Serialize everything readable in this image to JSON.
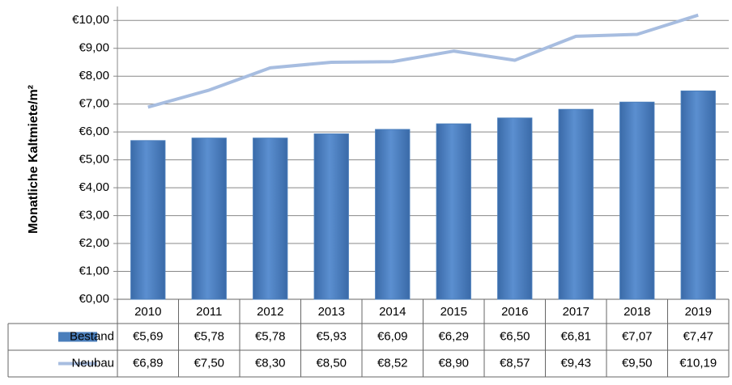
{
  "chart_data": {
    "type": "bar",
    "y_label": "Monatliche Kaltmiete/m²",
    "categories": [
      "2010",
      "2011",
      "2012",
      "2013",
      "2014",
      "2015",
      "2016",
      "2017",
      "2018",
      "2019"
    ],
    "series": [
      {
        "name": "Bestand",
        "type": "bar",
        "color": "#4a7ebb",
        "values": [
          5.69,
          5.78,
          5.78,
          5.93,
          6.09,
          6.29,
          6.5,
          6.81,
          7.07,
          7.47
        ],
        "value_labels": [
          "€5,69",
          "€5,78",
          "€5,78",
          "€5,93",
          "€6,09",
          "€6,29",
          "€6,50",
          "€6,81",
          "€7,07",
          "€7,47"
        ]
      },
      {
        "name": "Neubau",
        "type": "line",
        "color": "#a7bde0",
        "values": [
          6.89,
          7.5,
          8.3,
          8.5,
          8.52,
          8.9,
          8.57,
          9.43,
          9.5,
          10.19
        ],
        "value_labels": [
          "€6,89",
          "€7,50",
          "€8,30",
          "€8,50",
          "€8,52",
          "€8,90",
          "€8,57",
          "€9,43",
          "€9,50",
          "€10,19"
        ]
      }
    ],
    "ylim": [
      0,
      10.5
    ],
    "yticks": [
      {
        "value": 0,
        "label": "€0,00"
      },
      {
        "value": 1,
        "label": "€1,00"
      },
      {
        "value": 2,
        "label": "€2,00"
      },
      {
        "value": 3,
        "label": "€3,00"
      },
      {
        "value": 4,
        "label": "€4,00"
      },
      {
        "value": 5,
        "label": "€5,00"
      },
      {
        "value": 6,
        "label": "€6,00"
      },
      {
        "value": 7,
        "label": "€7,00"
      },
      {
        "value": 8,
        "label": "€8,00"
      },
      {
        "value": 9,
        "label": "€9,00"
      },
      {
        "value": 10,
        "label": "€10,00"
      }
    ],
    "grid": true
  }
}
